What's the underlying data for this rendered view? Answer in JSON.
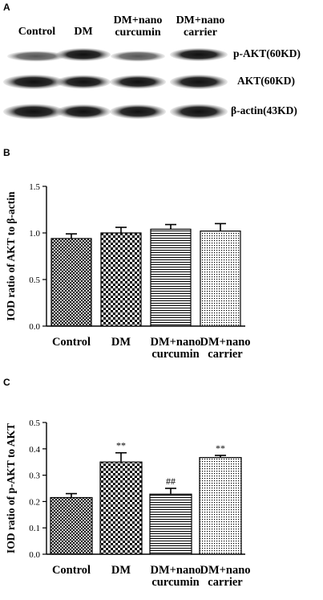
{
  "figure": {
    "panel_a": {
      "letter": "A",
      "lanes": [
        "Control",
        "DM",
        "DM+nano\ncurcumin",
        "DM+nano\ncarrier"
      ],
      "blot_labels": [
        "p-AKT(60KD)",
        "AKT(60KD)",
        "β-actin(43KD)"
      ]
    },
    "panel_b": {
      "letter": "B"
    },
    "panel_c": {
      "letter": "C"
    }
  },
  "chart_data": [
    {
      "type": "bar",
      "panel": "B",
      "categories": [
        "Control",
        "DM",
        "DM+nano\ncurcumin",
        "DM+nano\ncarrier"
      ],
      "values": [
        0.94,
        1.0,
        1.04,
        1.02
      ],
      "errors": [
        0.05,
        0.06,
        0.05,
        0.08
      ],
      "annotations": [
        "",
        "",
        "",
        ""
      ],
      "ylabel": "IOD ratio of AKT to β-actin",
      "xlabel": "",
      "ylim": [
        0,
        1.5
      ],
      "yticks": [
        "0.0",
        "0.5",
        "1.0",
        "1.5"
      ],
      "grid": false,
      "patterns": [
        "crosshatch",
        "checker",
        "horizontal",
        "dots"
      ]
    },
    {
      "type": "bar",
      "panel": "C",
      "categories": [
        "Control",
        "DM",
        "DM+nano\ncurcumin",
        "DM+nano\ncarrier"
      ],
      "values": [
        0.215,
        0.35,
        0.228,
        0.367
      ],
      "errors": [
        0.015,
        0.035,
        0.022,
        0.008
      ],
      "annotations": [
        "",
        "**",
        "##",
        "**"
      ],
      "ylabel": "IOD ratio of p-AKT to AKT",
      "xlabel": "",
      "ylim": [
        0,
        0.5
      ],
      "yticks": [
        "0.0",
        "0.1",
        "0.2",
        "0.3",
        "0.4",
        "0.5"
      ],
      "grid": false,
      "patterns": [
        "crosshatch",
        "checker",
        "horizontal",
        "dots"
      ]
    }
  ]
}
